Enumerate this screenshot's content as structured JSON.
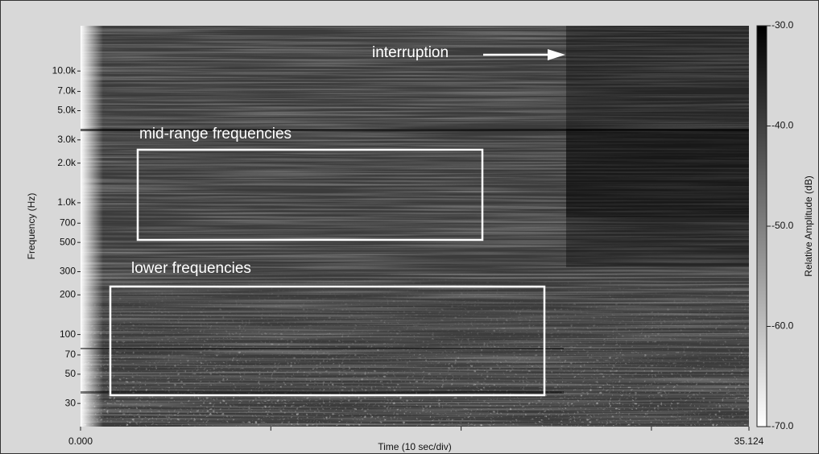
{
  "chart_data": {
    "type": "spectrogram",
    "xlabel": "Time (10 sec/div)",
    "ylabel": "Frequency (Hz)",
    "xlim": [
      0,
      35.124
    ],
    "xticks": [
      {
        "value": 0,
        "label": "0.000"
      },
      {
        "value": 10,
        "label": null
      },
      {
        "value": 20,
        "label": null
      },
      {
        "value": 30,
        "label": null
      },
      35.124
    ],
    "ylim": [
      20,
      22050
    ],
    "yscale": "log",
    "yticks": [
      30,
      50,
      70,
      100,
      200,
      300,
      500,
      700,
      {
        "value": 1000,
        "label": "1.0k"
      },
      {
        "value": 2000,
        "label": "2.0k"
      },
      {
        "value": 3000,
        "label": "3.0k"
      },
      {
        "value": 5000,
        "label": "5.0k"
      },
      {
        "value": 7000,
        "label": "7.0k"
      },
      {
        "value": 10000,
        "label": "10.0k"
      }
    ],
    "colorbar": {
      "label": "Relative Amplitude (dB)",
      "lim": [
        -70,
        -30
      ],
      "ticks": [
        {
          "value": -30,
          "label": "-30.0"
        },
        {
          "value": -40,
          "label": "-40.0"
        },
        {
          "value": -50,
          "label": "-50.0"
        },
        {
          "value": -60,
          "label": "-60.0"
        },
        {
          "value": -70,
          "label": "-70.0"
        }
      ],
      "colors": [
        "#ffffff",
        "#000000"
      ]
    },
    "annotations": [
      {
        "text": "interruption"
      },
      {
        "text": "mid-range frequencies"
      },
      {
        "text": "lower frequencies"
      }
    ]
  }
}
